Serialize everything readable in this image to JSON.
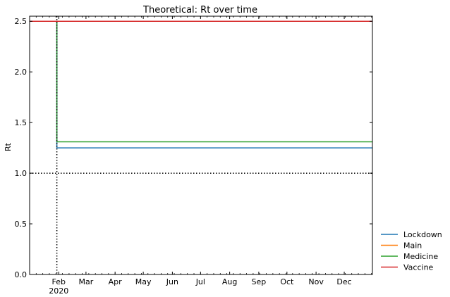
{
  "chart_data": {
    "type": "line",
    "title": "Theoretical: Rt over time",
    "xlabel": "",
    "ylabel": "Rt",
    "x_type": "date",
    "xlim": [
      "2020-01-01",
      "2020-12-31"
    ],
    "ylim": [
      0.0,
      2.55
    ],
    "y_ticks": [
      0.0,
      0.5,
      1.0,
      1.5,
      2.0,
      2.5
    ],
    "x_ticks": [
      {
        "date": "2020-02-01",
        "label": "Feb",
        "year_label": "2020"
      },
      {
        "date": "2020-03-01",
        "label": "Mar",
        "year_label": ""
      },
      {
        "date": "2020-04-01",
        "label": "Apr",
        "year_label": ""
      },
      {
        "date": "2020-05-01",
        "label": "May",
        "year_label": ""
      },
      {
        "date": "2020-06-01",
        "label": "Jun",
        "year_label": ""
      },
      {
        "date": "2020-07-01",
        "label": "Jul",
        "year_label": ""
      },
      {
        "date": "2020-08-01",
        "label": "Aug",
        "year_label": ""
      },
      {
        "date": "2020-09-01",
        "label": "Sep",
        "year_label": ""
      },
      {
        "date": "2020-10-01",
        "label": "Oct",
        "year_label": ""
      },
      {
        "date": "2020-11-01",
        "label": "Nov",
        "year_label": ""
      },
      {
        "date": "2020-12-01",
        "label": "Dec",
        "year_label": ""
      }
    ],
    "reference_lines": [
      {
        "orientation": "horizontal",
        "value": 1.0,
        "style": "dotted",
        "color": "#000000"
      },
      {
        "orientation": "vertical",
        "value": "2020-01-30",
        "style": "dotted",
        "color": "#000000"
      }
    ],
    "series": [
      {
        "name": "Lockdown",
        "color": "#1f77b4",
        "x": [
          "2020-01-01",
          "2020-01-30",
          "2020-01-30",
          "2020-12-31"
        ],
        "y": [
          2.5,
          2.5,
          1.25,
          1.25
        ]
      },
      {
        "name": "Main",
        "color": "#ff7f0e",
        "x": [
          "2020-01-01",
          "2020-12-31"
        ],
        "y": [
          2.5,
          2.5
        ]
      },
      {
        "name": "Medicine",
        "color": "#2ca02c",
        "x": [
          "2020-01-01",
          "2020-01-30",
          "2020-01-30",
          "2020-12-31"
        ],
        "y": [
          2.5,
          2.5,
          1.31,
          1.31
        ]
      },
      {
        "name": "Vaccine",
        "color": "#d62728",
        "x": [
          "2020-01-01",
          "2020-12-31"
        ],
        "y": [
          2.5,
          2.5
        ]
      }
    ],
    "legend": {
      "position": "lower-right-outside"
    },
    "grid": false
  }
}
